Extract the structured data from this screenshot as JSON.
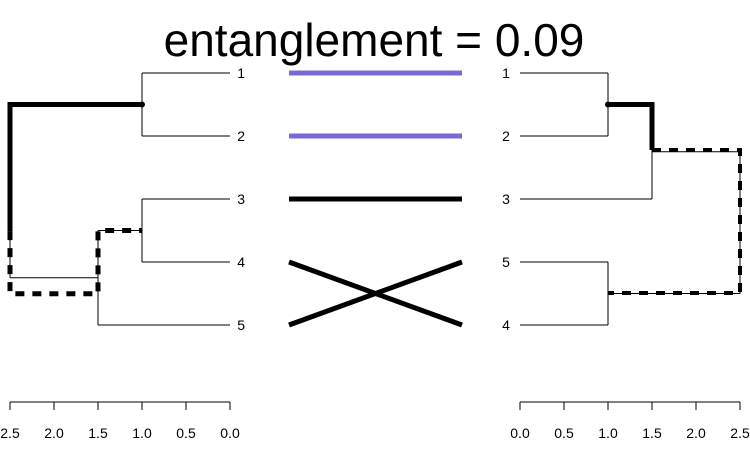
{
  "chart_data": {
    "type": "tanglegram",
    "title": "entanglement = 0.09",
    "left_dendrogram": {
      "leaf_order": [
        "1",
        "2",
        "3",
        "4",
        "5"
      ],
      "axis": {
        "range": [
          0,
          2.5
        ],
        "reversed": true,
        "ticks": [
          "2.5",
          "2.0",
          "1.5",
          "1.0",
          "0.5",
          "0.0"
        ]
      },
      "merges": [
        {
          "members": [
            "1",
            "2"
          ],
          "height": 1.0
        },
        {
          "members": [
            "3",
            "4"
          ],
          "height": 1.0
        },
        {
          "members": [
            "3",
            "4",
            "5"
          ],
          "height": 1.5
        },
        {
          "members": [
            "1",
            "2",
            "3",
            "4",
            "5"
          ],
          "height": 2.5
        }
      ]
    },
    "right_dendrogram": {
      "leaf_order": [
        "1",
        "2",
        "3",
        "5",
        "4"
      ],
      "axis": {
        "range": [
          0,
          2.5
        ],
        "reversed": false,
        "ticks": [
          "0.0",
          "0.5",
          "1.0",
          "1.5",
          "2.0",
          "2.5"
        ]
      },
      "merges": [
        {
          "members": [
            "1",
            "2"
          ],
          "height": 1.0
        },
        {
          "members": [
            "1",
            "2",
            "3"
          ],
          "height": 1.5
        },
        {
          "members": [
            "5",
            "4"
          ],
          "height": 1.0
        },
        {
          "members": [
            "1",
            "2",
            "3",
            "5",
            "4"
          ],
          "height": 2.5
        }
      ]
    },
    "connections": [
      {
        "label": "1",
        "color": "#7B68D4"
      },
      {
        "label": "2",
        "color": "#7B68D4"
      },
      {
        "label": "3",
        "color": "#000000"
      },
      {
        "label": "4",
        "color": "#000000"
      },
      {
        "label": "5",
        "color": "#000000"
      }
    ]
  }
}
